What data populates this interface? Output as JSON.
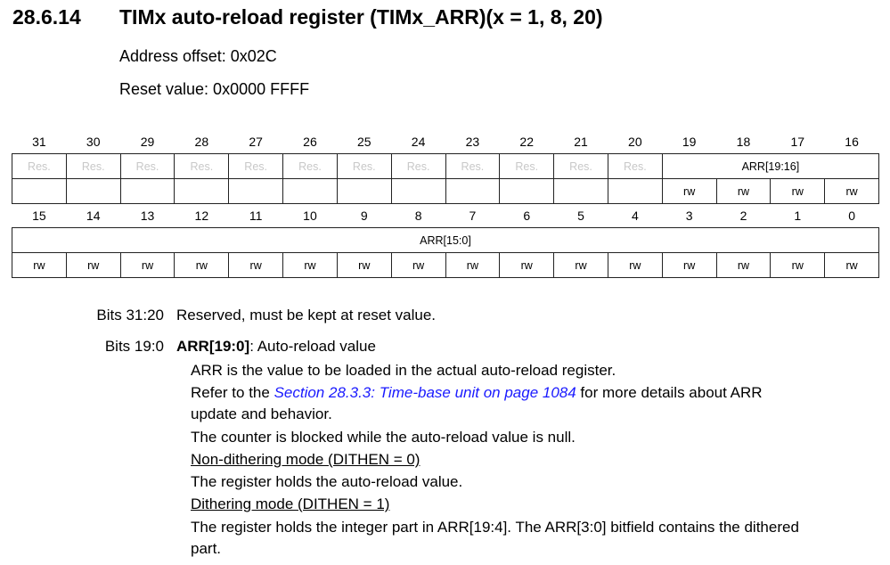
{
  "header": {
    "section": "28.6.14",
    "title": "TIMx auto-reload register (TIMx_ARR)(x = 1, 8, 20)",
    "address_offset": "Address offset: 0x02C",
    "reset_value": "Reset value: 0x0000 FFFF"
  },
  "register": {
    "upper_bits": [
      "31",
      "30",
      "29",
      "28",
      "27",
      "26",
      "25",
      "24",
      "23",
      "22",
      "21",
      "20",
      "19",
      "18",
      "17",
      "16"
    ],
    "lower_bits": [
      "15",
      "14",
      "13",
      "12",
      "11",
      "10",
      "9",
      "8",
      "7",
      "6",
      "5",
      "4",
      "3",
      "2",
      "1",
      "0"
    ],
    "reserved_label": "Res.",
    "upper_field": "ARR[19:16]",
    "lower_field": "ARR[15:0]",
    "access": "rw"
  },
  "description": {
    "bits_31_20": {
      "label": "Bits 31:20",
      "text": "Reserved, must be kept at reset value."
    },
    "bits_19_0": {
      "label": "Bits 19:0",
      "name": "ARR[19:0]",
      "title": ": Auto-reload value",
      "line1": "ARR is the value to be loaded in the actual auto-reload register.",
      "refer_prefix": "Refer to the ",
      "link": "Section 28.3.3: Time-base unit on page 1084",
      "refer_suffix": " for more details about ARR",
      "line2b": "update and behavior.",
      "line3": "The counter is blocked while the auto-reload value is null.",
      "mode1": "Non-dithering mode (DITHEN = 0)",
      "mode1_text": "The register holds the auto-reload value.",
      "mode2": "Dithering mode (DITHEN = 1)",
      "mode2_text": "The register holds the integer part in ARR[19:4]. The ARR[3:0] bitfield contains the dithered",
      "mode2_text2": "part."
    }
  }
}
